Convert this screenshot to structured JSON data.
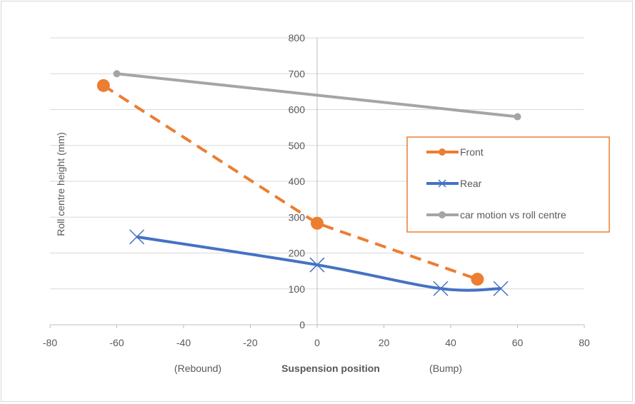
{
  "chart_data": {
    "type": "line",
    "title": "",
    "xlabel": "Suspension position",
    "xlabel_left_note": "(Rebound)",
    "xlabel_right_note": "(Bump)",
    "ylabel": "Roll centre height (mm)",
    "xlim": [
      -80,
      80
    ],
    "ylim": [
      0,
      800
    ],
    "xticks": [
      -80,
      -60,
      -40,
      -20,
      0,
      20,
      40,
      60,
      80
    ],
    "yticks": [
      0,
      100,
      200,
      300,
      400,
      500,
      600,
      700,
      800
    ],
    "grid": "horizontal",
    "legend_position": "right",
    "series": [
      {
        "name": "Front",
        "color": "#ed7d31",
        "style": "dashed",
        "marker": "circle",
        "x": [
          -64,
          0,
          48
        ],
        "y": [
          667,
          283,
          127
        ]
      },
      {
        "name": "Rear",
        "color": "#4472c4",
        "style": "smooth",
        "marker": "x",
        "x": [
          -54,
          0,
          37,
          55
        ],
        "y": [
          245,
          167,
          101,
          101
        ]
      },
      {
        "name": "car motion vs roll centre",
        "color": "#a5a5a5",
        "style": "solid",
        "marker": "circle",
        "x": [
          -60,
          60
        ],
        "y": [
          700,
          580
        ]
      }
    ]
  }
}
